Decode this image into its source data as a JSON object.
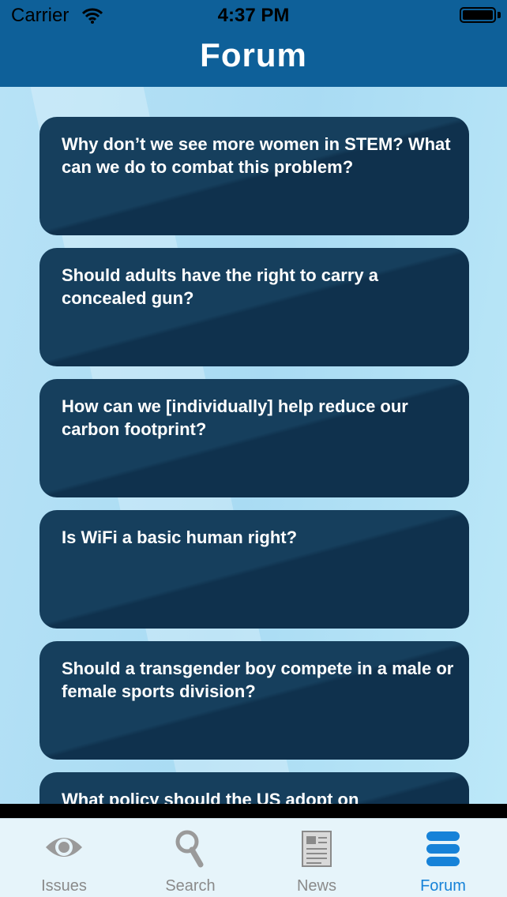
{
  "status_bar": {
    "carrier": "Carrier",
    "time": "4:37 PM"
  },
  "header": {
    "title": "Forum"
  },
  "cards": [
    {
      "text": "Why don’t we see more women in STEM? What can we do to combat this problem?"
    },
    {
      "text": "Should adults have the right to carry a concealed gun?"
    },
    {
      "text": "How can we [individually] help reduce our carbon footprint?"
    },
    {
      "text": "Is WiFi a basic human right?"
    },
    {
      "text": "Should a transgender boy compete in a male or female sports division?"
    },
    {
      "text": "What policy should the US adopt on"
    }
  ],
  "tabs": [
    {
      "label": "Issues",
      "icon": "eye-icon"
    },
    {
      "label": "Search",
      "icon": "magnifier-icon"
    },
    {
      "label": "News",
      "icon": "newspaper-icon"
    },
    {
      "label": "Forum",
      "icon": "chat-bubbles-icon",
      "active": true
    }
  ],
  "colors": {
    "header": "#0e6099",
    "card": "#163f5d",
    "tab_active": "#1682d8",
    "tab_inactive": "#8a8a8a"
  }
}
